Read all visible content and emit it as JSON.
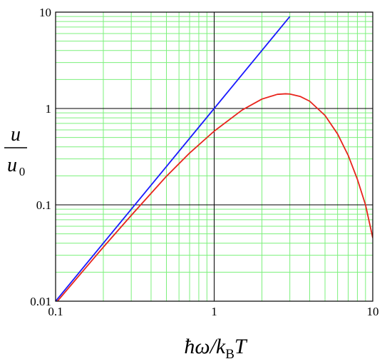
{
  "chart_data": {
    "type": "line",
    "title": "",
    "xscale": "log",
    "yscale": "log",
    "xlim": [
      0.1,
      10
    ],
    "ylim": [
      0.01,
      10
    ],
    "grid": true,
    "grid_color": "#7cf07c",
    "major_grid_color": "#000000",
    "xticks": [
      {
        "value": 0.1,
        "label": "0.1"
      },
      {
        "value": 1,
        "label": "1"
      },
      {
        "value": 10,
        "label": "10"
      }
    ],
    "yticks": [
      {
        "value": 0.01,
        "label": "0.01"
      },
      {
        "value": 0.1,
        "label": "0.1"
      },
      {
        "value": 1,
        "label": "1"
      },
      {
        "value": 10,
        "label": "10"
      }
    ],
    "xlabel": {
      "main": "ħω/k",
      "sub": "B",
      "tail": "T"
    },
    "ylabel": {
      "numerator": "u",
      "denominator": "u",
      "denominator_sub": "0"
    },
    "series": [
      {
        "color": "#1a1aff",
        "x": [
          0.1,
          0.2,
          0.5,
          1,
          2,
          3
        ],
        "y": [
          0.01,
          0.04,
          0.25,
          1,
          4,
          9
        ]
      },
      {
        "color": "#e8241c",
        "x": [
          0.1,
          0.15,
          0.2,
          0.3,
          0.5,
          0.7,
          1,
          1.5,
          2,
          2.5,
          2.82,
          3,
          3.5,
          4,
          5,
          6,
          7,
          8,
          9,
          10
        ],
        "y": [
          0.0095,
          0.0209,
          0.0364,
          0.0778,
          0.198,
          0.345,
          0.582,
          0.963,
          1.252,
          1.402,
          1.42,
          1.413,
          1.33,
          1.191,
          0.847,
          0.544,
          0.326,
          0.184,
          0.1,
          0.0454
        ]
      }
    ]
  }
}
